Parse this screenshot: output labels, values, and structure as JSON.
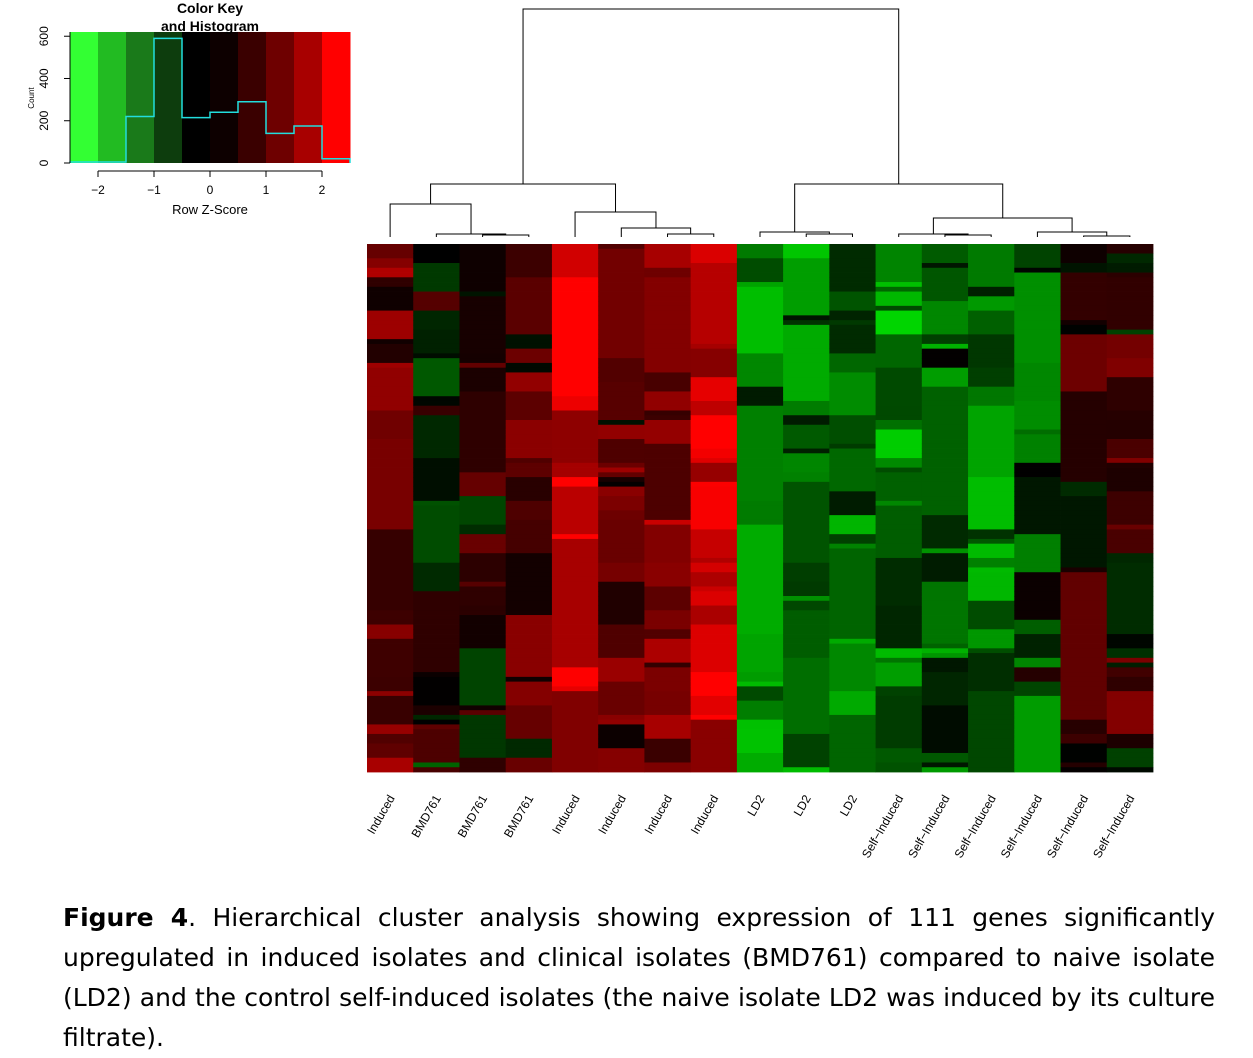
{
  "color_key": {
    "title_line1": "Color Key",
    "title_line2": "and Histogram",
    "ylabel": "Count",
    "xlabel": "Row Z-Score",
    "xticks": [
      "-2",
      "-1",
      "0",
      "1",
      "2"
    ],
    "yticks": [
      "0",
      "200",
      "400",
      "600"
    ],
    "colors": [
      "#33ff33",
      "#22bb22",
      "#1a7a1a",
      "#0d3d0d",
      "#000000",
      "#0d0000",
      "#3a0000",
      "#6e0000",
      "#a80000",
      "#ff0000"
    ]
  },
  "chart_data": [
    {
      "type": "histogram",
      "title": "Color Key and Histogram",
      "xlabel": "Row Z-Score",
      "ylabel": "Count",
      "xlim": [
        -2.5,
        2.5
      ],
      "ylim": [
        0,
        620
      ],
      "bin_edges": [
        -2.5,
        -2.0,
        -1.5,
        -1.0,
        -0.5,
        0.0,
        0.5,
        1.0,
        1.5,
        2.0,
        2.5
      ],
      "counts": [
        5,
        5,
        220,
        590,
        215,
        240,
        290,
        140,
        175,
        20
      ]
    },
    {
      "type": "heatmap",
      "title": "",
      "columns": [
        "Induced",
        "BMD761",
        "BMD761",
        "BMD761",
        "Induced",
        "Induced",
        "Induced",
        "Induced",
        "LD2",
        "LD2",
        "LD2",
        "Self-Induced",
        "Self-Induced",
        "Self-Induced",
        "Self-Induced",
        "Self-Induced",
        "Self-Induced"
      ],
      "n_rows": 111,
      "value_scale": "row z-score, green (low) to red (high)",
      "column_mean_z": [
        0.9,
        0.0,
        0.1,
        0.5,
        2.0,
        0.7,
        1.2,
        2.1,
        -1.1,
        -1.0,
        -1.1,
        -1.2,
        -0.8,
        -1.1,
        -0.6,
        0.1,
        0.3
      ],
      "dendrogram": "two main clusters: columns 1-8 (induced, BMD761) and columns 9-17 (LD2, self-induced)"
    }
  ],
  "caption": {
    "label": "Figure 4",
    "text": ". Hierarchical cluster analysis showing expression of 111 genes significantly upregulated in induced isolates and clinical isolates (BMD761) compared to naive isolate (LD2) and the control self-induced isolates (the naive isolate LD2 was induced by its culture filtrate)."
  }
}
